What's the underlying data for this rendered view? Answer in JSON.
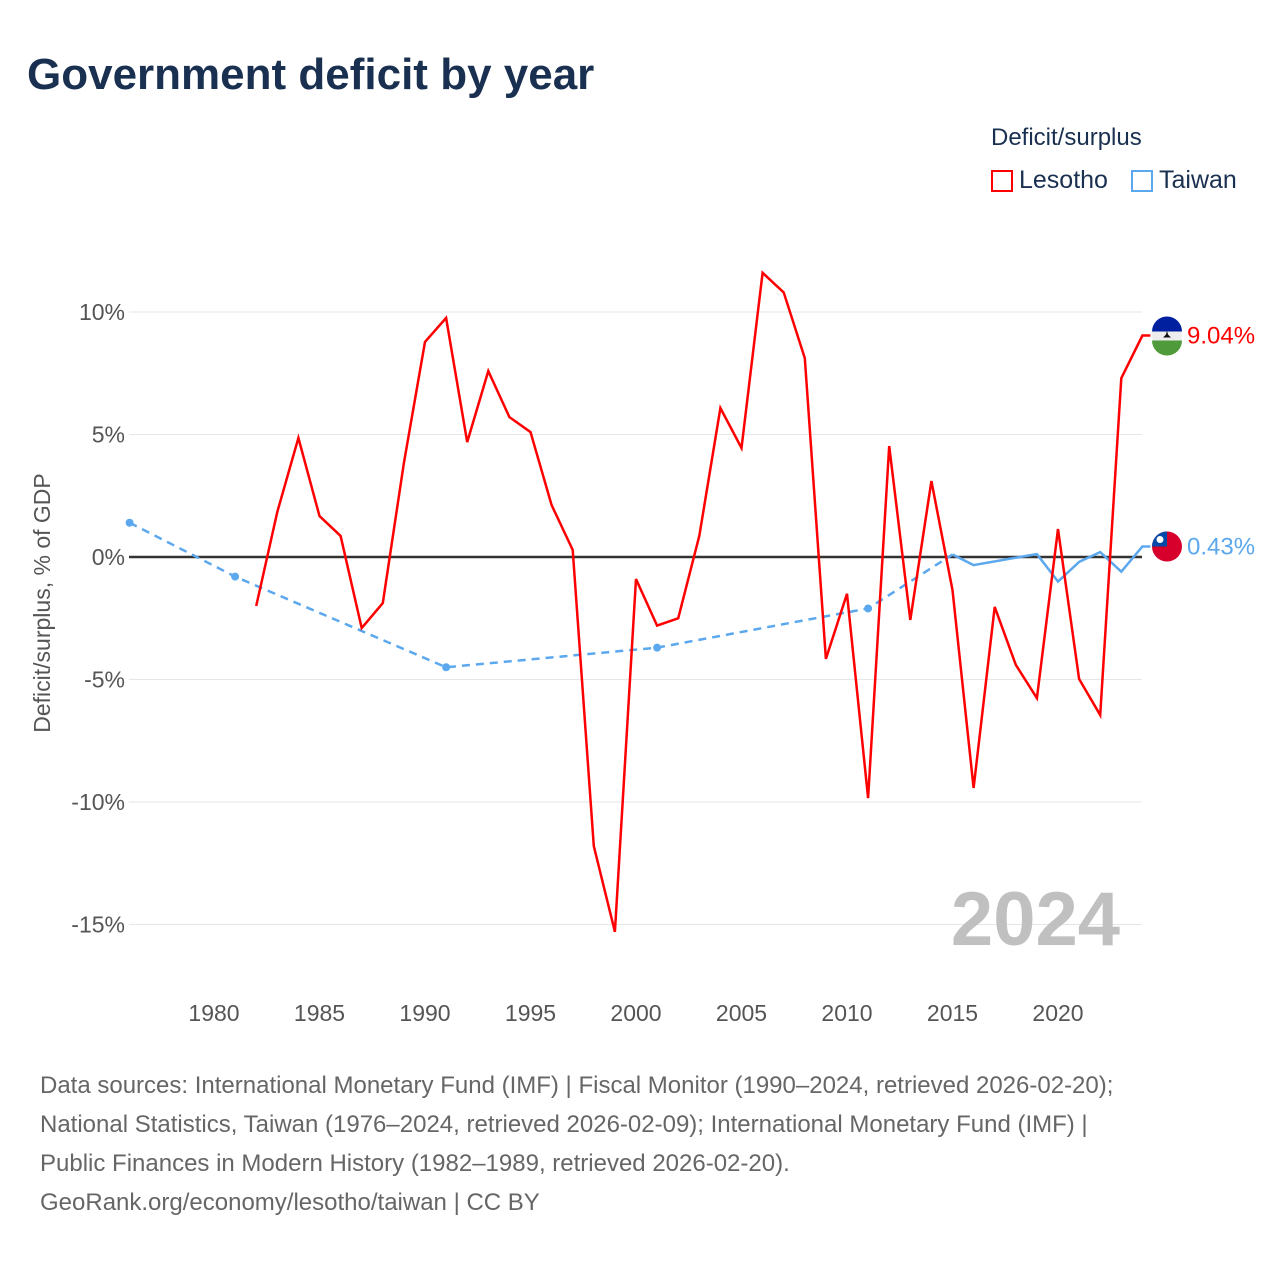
{
  "title": "Government deficit by year",
  "legend": {
    "title": "Deficit/surplus",
    "items": [
      {
        "name": "Lesotho",
        "color": "#ff0000"
      },
      {
        "name": "Taiwan",
        "color": "#5ba8ee"
      }
    ]
  },
  "year_watermark": "2024",
  "footer": {
    "lines": [
      "Data sources: International Monetary Fund (IMF) | Fiscal Monitor (1990–2024, retrieved 2026-02-20);",
      "National Statistics, Taiwan (1976–2024, retrieved 2026-02-09); International Monetary Fund (IMF) |",
      "Public Finances in Modern History (1982–1989, retrieved 2026-02-20).",
      "GeoRank.org/economy/lesotho/taiwan | CC BY"
    ]
  },
  "chart_data": {
    "type": "line",
    "title": "Government deficit by year",
    "xlabel": "",
    "ylabel": "Deficit/surplus, % of GDP",
    "xlim": [
      1976,
      2024
    ],
    "ylim": [
      -15,
      10
    ],
    "x_ticks": [
      1980,
      1985,
      1990,
      1995,
      2000,
      2005,
      2010,
      2015,
      2020
    ],
    "y_ticks": [
      {
        "v": 10,
        "label": "10%"
      },
      {
        "v": 5,
        "label": "5%"
      },
      {
        "v": 0,
        "label": "0%"
      },
      {
        "v": -5,
        "label": "-5%"
      },
      {
        "v": -10,
        "label": "-10%"
      },
      {
        "v": -15,
        "label": "-15%"
      }
    ],
    "legend_position": "top-right",
    "series": [
      {
        "name": "Lesotho",
        "color": "#ff0000",
        "end_label": "9.04%",
        "x": [
          1982,
          1983,
          1984,
          1985,
          1986,
          1987,
          1988,
          1989,
          1990,
          1991,
          1992,
          1993,
          1994,
          1995,
          1996,
          1997,
          1998,
          1999,
          2000,
          2001,
          2002,
          2003,
          2004,
          2005,
          2006,
          2007,
          2008,
          2009,
          2010,
          2011,
          2012,
          2013,
          2014,
          2015,
          2016,
          2017,
          2018,
          2019,
          2020,
          2021,
          2022,
          2023,
          2024
        ],
        "y": [
          -2.0,
          1.84,
          4.86,
          1.67,
          0.86,
          -2.9,
          -1.88,
          3.84,
          8.78,
          9.76,
          4.69,
          7.59,
          5.71,
          5.1,
          2.12,
          0.29,
          -11.8,
          -15.3,
          -0.9,
          -2.8,
          -2.5,
          0.86,
          6.08,
          4.45,
          11.6,
          10.8,
          8.12,
          -4.16,
          -1.5,
          -9.84,
          4.53,
          -2.57,
          3.1,
          -1.35,
          -9.43,
          -2.04,
          -4.4,
          -5.76,
          1.14,
          -4.98,
          -6.45,
          7.3,
          9.04
        ]
      },
      {
        "name": "Taiwan",
        "color": "#5ba8ee",
        "end_label": "0.43%",
        "sparse_x": [
          1976,
          1981,
          1991,
          2001,
          2011,
          2015
        ],
        "sparse_y": [
          1.4,
          -0.8,
          -4.5,
          -3.7,
          -2.1,
          0.1
        ],
        "x": [
          2015,
          2016,
          2019,
          2020,
          2021,
          2022,
          2023,
          2024
        ],
        "y": [
          0.1,
          -0.33,
          0.12,
          -1.0,
          -0.2,
          0.2,
          -0.6,
          0.43
        ]
      }
    ]
  }
}
